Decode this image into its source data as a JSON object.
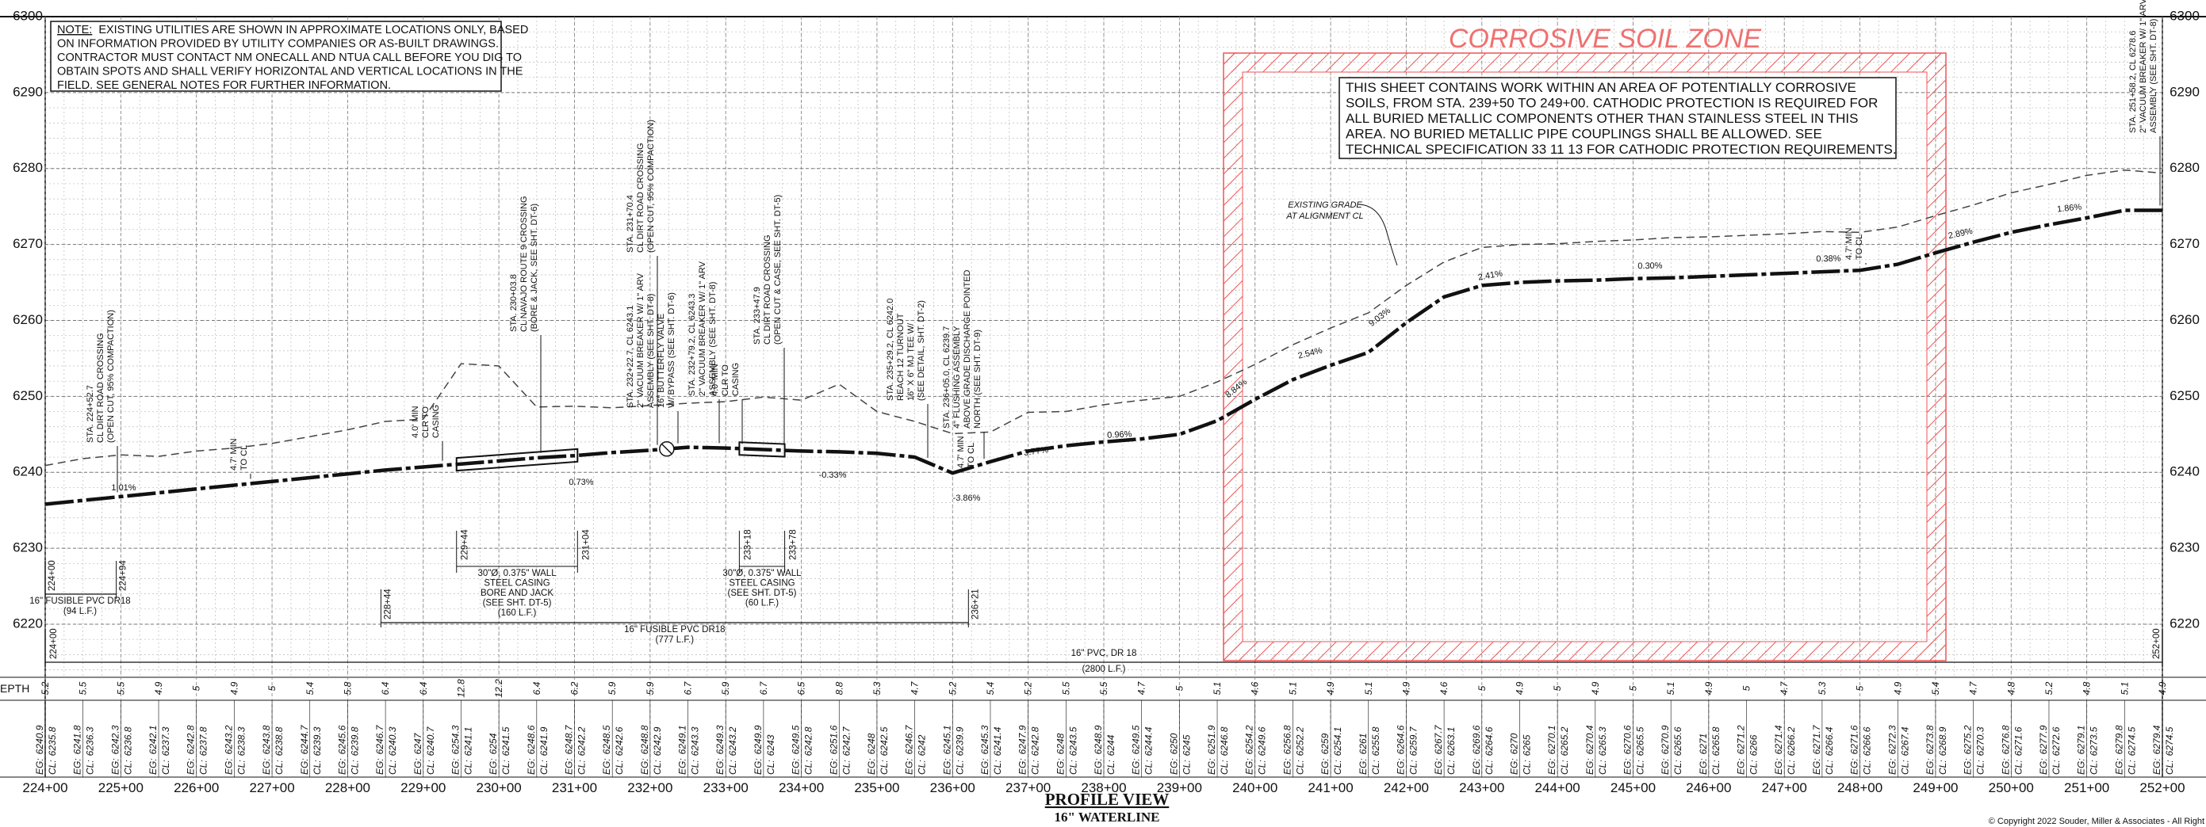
{
  "note": {
    "heading": "NOTE:",
    "lines": [
      "EXISTING UTILITIES ARE SHOWN IN APPROXIMATE LOCATIONS ONLY, BASED",
      "ON INFORMATION PROVIDED BY UTILITY COMPANIES OR AS-BUILT DRAWINGS.",
      "CONTRACTOR MUST CONTACT NM ONECALL AND NTUA CALL BEFORE YOU DIG TO",
      "OBTAIN SPOTS AND SHALL VERIFY HORIZONTAL AND VERTICAL LOCATIONS IN THE",
      "FIELD. SEE GENERAL NOTES FOR FURTHER INFORMATION."
    ]
  },
  "zone": {
    "title": "CORROSIVE SOIL ZONE",
    "lines": [
      "THIS SHEET CONTAINS WORK WITHIN AN AREA OF POTENTIALLY CORROSIVE",
      "SOILS, FROM STA. 239+50 TO 249+00.  CATHODIC PROTECTION IS REQUIRED FOR",
      "ALL BURIED METALLIC COMPONENTS OTHER THAN STAINLESS STEEL IN THIS",
      "AREA.  NO BURIED METALLIC PIPE COUPLINGS SHALL BE ALLOWED. SEE",
      "TECHNICAL SPECIFICATION 33 11 13 FOR CATHODIC PROTECTION REQUIREMENTS."
    ]
  },
  "elevations": [
    6300,
    6290,
    6280,
    6270,
    6260,
    6250,
    6240,
    6230,
    6220
  ],
  "stations": [
    "224+00",
    "225+00",
    "226+00",
    "227+00",
    "228+00",
    "229+00",
    "230+00",
    "231+00",
    "232+00",
    "233+00",
    "234+00",
    "235+00",
    "236+00",
    "237+00",
    "238+00",
    "239+00",
    "240+00",
    "241+00",
    "242+00",
    "243+00",
    "244+00",
    "245+00",
    "246+00",
    "247+00",
    "248+00",
    "249+00",
    "250+00",
    "251+00",
    "252+00"
  ],
  "table": {
    "depth_label": "EPTH",
    "eg_prefix": "EG:",
    "cl_prefix": "CL:",
    "depth": [
      5.2,
      5.5,
      5.5,
      4.9,
      5.0,
      4.9,
      5.0,
      5.4,
      5.8,
      6.4,
      6.4,
      12.8,
      12.2,
      6.4,
      6.2,
      5.9,
      5.9,
      6.7,
      5.9,
      6.7,
      6.5,
      8.8,
      5.3,
      4.7,
      5.2,
      5.4,
      5.2,
      5.5,
      5.5,
      4.7,
      5.0,
      5.1,
      4.6,
      5.1,
      4.9,
      5.1,
      4.9,
      4.6,
      5.0,
      4.9,
      5.0,
      4.9,
      5.0,
      5.1,
      4.9,
      5.0,
      4.7,
      5.3,
      5.0,
      4.9,
      5.4,
      4.7,
      4.8,
      5.2,
      4.8,
      5.1,
      4.9
    ],
    "eg": [
      6240.9,
      6241.8,
      6242.3,
      6242.1,
      6242.8,
      6243.2,
      6243.8,
      6244.7,
      6245.6,
      6246.7,
      6247.0,
      6254.3,
      6254.0,
      6248.6,
      6248.7,
      6248.5,
      6248.8,
      6249.1,
      6249.3,
      6249.9,
      6249.5,
      6251.6,
      6248.0,
      6246.7,
      6245.1,
      6245.3,
      6247.9,
      6248.0,
      6248.9,
      6249.5,
      6250.0,
      6251.9,
      6254.2,
      6256.8,
      6259.0,
      6261.0,
      6264.6,
      6267.7,
      6269.6,
      6270.0,
      6270.1,
      6270.4,
      6270.6,
      6270.9,
      6271.0,
      6271.2,
      6271.4,
      6271.7,
      6271.6,
      6272.3,
      6273.8,
      6275.2,
      6276.8,
      6277.9,
      6279.1,
      6279.8,
      6279.4
    ],
    "cl": [
      6235.8,
      6236.3,
      6236.8,
      6237.3,
      6237.8,
      6238.3,
      6238.8,
      6239.3,
      6239.8,
      6240.3,
      6240.7,
      6241.1,
      6241.5,
      6241.9,
      6242.2,
      6242.6,
      6242.9,
      6243.3,
      6243.2,
      6243.0,
      6242.8,
      6242.7,
      6242.5,
      6242.0,
      6239.9,
      6241.4,
      6242.8,
      6243.5,
      6244.0,
      6244.4,
      6245.0,
      6246.8,
      6249.6,
      6252.2,
      6254.1,
      6255.8,
      6259.7,
      6263.1,
      6264.6,
      6265.0,
      6265.2,
      6265.3,
      6265.5,
      6265.6,
      6265.8,
      6266.0,
      6266.2,
      6266.4,
      6266.6,
      6267.4,
      6268.9,
      6270.3,
      6271.6,
      6272.6,
      6273.5,
      6274.5,
      6274.5
    ]
  },
  "existing_grade_label": [
    "EXISTING GRADE",
    "AT ALIGNMENT CL"
  ],
  "slopes": [
    "1.01%",
    "0.73%",
    "-0.33%",
    "-3.86%",
    "3.77%",
    "0.96%",
    "8.84%",
    "2.54%",
    "9.03%",
    "2.41%",
    "0.30%",
    "0.38%",
    "2.89%",
    "1.86%"
  ],
  "annotations": [
    {
      "lines": [
        "STA. 224+52.7",
        "CL DIRT ROAD CROSSING",
        "(OPEN CUT, 95% COMPACTION)"
      ]
    },
    {
      "lines": [
        "4.7' MIN",
        "TO CL"
      ]
    },
    {
      "lines": [
        "4.0' MIN",
        "CLR TO",
        "CASING"
      ]
    },
    {
      "lines": [
        "STA. 230+03.8",
        "CL NAVAJO ROUTE 9 CROSSING",
        "(BORE & JACK, SEE SHT. DT-6)"
      ]
    },
    {
      "lines": [
        "STA. 231+70.4",
        "CL DIRT ROAD CROSSING",
        "(OPEN CUT, 95% COMPACTION)"
      ]
    },
    {
      "lines": [
        "STA. 232+22.7, CL 6243.1",
        "2\" VACUUM BREAKER W/ 1\" ARV",
        "ASSEMBLY (SEE SHT. DT-8)",
        "16\" BUTTERFLY VALVE",
        "W/ BYPASS (SEE SHT. DT-6)"
      ]
    },
    {
      "lines": [
        "STA. 232+79.2, CL 6243.3",
        "2\" VACUUM BREAKER W/ 1\" ARV",
        "ASSEMBLY (SEE SHT. DT-8)"
      ]
    },
    {
      "lines": [
        "4.0' MIN",
        "CLR TO",
        "CASING"
      ]
    },
    {
      "lines": [
        "STA. 233+47.9",
        "CL DIRT ROAD CROSSING",
        "(OPEN CUT & CASE, SEE SHT. DT-5)"
      ]
    },
    {
      "lines": [
        "STA. 235+29.2, CL 6242.0",
        "REACH 12 TURNOUT",
        "16\" X 6\" MJ TEE W/",
        "(SEE DETAIL, SHT. DT-2)"
      ]
    },
    {
      "lines": [
        "STA. 236+05.0, CL 6239.7",
        "4\" FLUSHING ASSEMBLY",
        "ABOVE GRADE DISCHARGE POINTED",
        "NORTH (SEE SHT. DT-9)"
      ]
    },
    {
      "lines": [
        "4.7' MIN",
        "TO CL"
      ]
    },
    {
      "lines": [
        "4.7' MIN",
        "TO CL"
      ]
    },
    {
      "lines": [
        "STA. 251+58.2, CL 6278.6",
        "2\" VACUUM BREAKER W/ 1\" ARV",
        "ASSEMBLY (SEE SHT. DT-8)"
      ]
    }
  ],
  "pipes": [
    {
      "start": "224+00",
      "end": "224+94",
      "lines": [
        "16\" FUSIBLE PVC DR18",
        "(94 L.F.)"
      ]
    },
    {
      "start": "228+44",
      "end": "236+21",
      "lines": [
        "16\" FUSIBLE PVC DR18",
        "(777 L.F.)"
      ]
    },
    {
      "start": "224+00",
      "end": "252+00",
      "lines": [
        "16\" PVC, DR 18",
        "(2800 L.F.)"
      ]
    }
  ],
  "casings": [
    {
      "start": "229+44",
      "end": "231+04",
      "lines": [
        "30\"Ø, 0.375\" WALL",
        "STEEL CASING",
        "BORE AND JACK",
        "(SEE SHT. DT-5)",
        "(160 L.F.)"
      ]
    },
    {
      "start": "233+18",
      "end": "233+78",
      "lines": [
        "30\"Ø, 0.375\" WALL",
        "STEEL CASING",
        "(SEE SHT. DT-5)",
        "(60 L.F.)"
      ]
    }
  ],
  "title": "PROFILE VIEW",
  "subtitle": "16\" WATERLINE",
  "copyright": "© Copyright 2022 Souder, Miller & Associates - All Right"
}
